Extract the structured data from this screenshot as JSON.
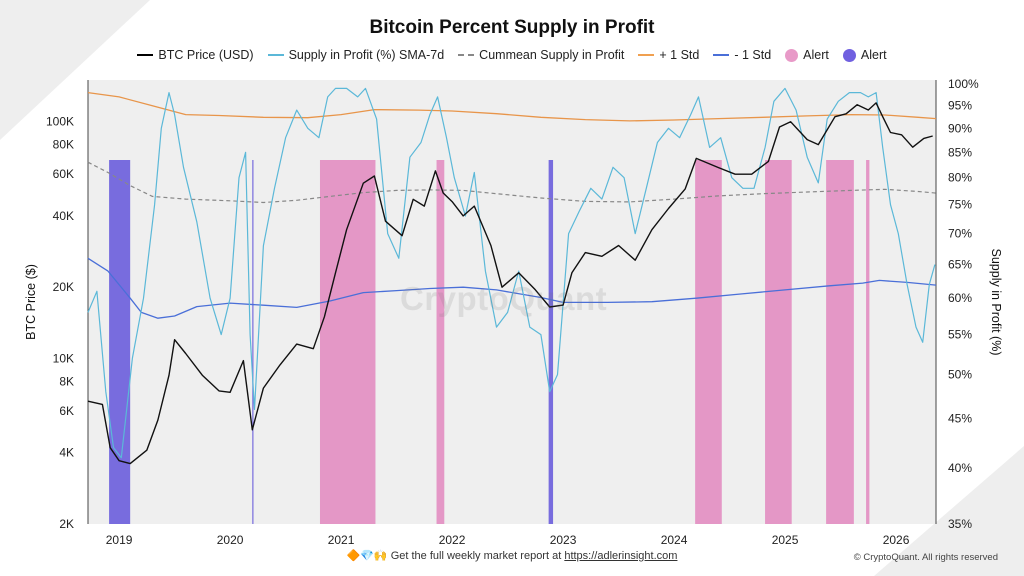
{
  "title": "Bitcoin Percent Supply in Profit",
  "legend": [
    {
      "label": "BTC Price (USD)",
      "kind": "line",
      "color": "#000000"
    },
    {
      "label": "Supply in Profit (%) SMA-7d",
      "kind": "line",
      "color": "#5bb8d8"
    },
    {
      "label": "Cummean Supply in Profit",
      "kind": "dash",
      "color": "#888888"
    },
    {
      "label": "+ 1 Std",
      "kind": "line",
      "color": "#f0a050"
    },
    {
      "label": "- 1 Std",
      "kind": "line",
      "color": "#4a6fd8"
    },
    {
      "label": "Alert",
      "kind": "dot",
      "color": "#e89ac8"
    },
    {
      "label": "Alert",
      "kind": "dot",
      "color": "#7060e0"
    }
  ],
  "watermark": "CryptoQuant",
  "footer": {
    "emoji": "🔶💎🙌",
    "text": "Get the full weekly market report at",
    "link": "https://adlerinsight.com"
  },
  "copyright": "© CryptoQuant. All rights reserved",
  "colors": {
    "price": "#111111",
    "supply": "#5bb8d8",
    "cummean": "#888888",
    "plus_std": "#e8954a",
    "minus_std": "#4a6fd8",
    "alert_pink": "#e07ab8",
    "alert_purple": "#5040d8",
    "plot_bg": "#efefef"
  },
  "chart_data": {
    "type": "line",
    "title": "Bitcoin Percent Supply in Profit",
    "x_axis": {
      "ticks": [
        "2019",
        "2020",
        "2021",
        "2022",
        "2023",
        "2024",
        "2025",
        "2026"
      ],
      "range": [
        2018.72,
        2026.36
      ]
    },
    "y_left": {
      "label": "BTC Price ($)",
      "scale": "log",
      "range": [
        2000,
        150000
      ],
      "ticks": [
        {
          "v": 2000,
          "label": "2K"
        },
        {
          "v": 4000,
          "label": "4K"
        },
        {
          "v": 6000,
          "label": "6K"
        },
        {
          "v": 8000,
          "label": "8K"
        },
        {
          "v": 10000,
          "label": "10K"
        },
        {
          "v": 20000,
          "label": "20K"
        },
        {
          "v": 40000,
          "label": "40K"
        },
        {
          "v": 60000,
          "label": "60K"
        },
        {
          "v": 80000,
          "label": "80K"
        },
        {
          "v": 100000,
          "label": "100K"
        }
      ]
    },
    "y_right": {
      "label": "Supply in Profit (%)",
      "scale": "log",
      "range": [
        35,
        101
      ],
      "ticks": [
        {
          "v": 35,
          "label": "35%"
        },
        {
          "v": 40,
          "label": "40%"
        },
        {
          "v": 45,
          "label": "45%"
        },
        {
          "v": 50,
          "label": "50%"
        },
        {
          "v": 55,
          "label": "55%"
        },
        {
          "v": 60,
          "label": "60%"
        },
        {
          "v": 65,
          "label": "65%"
        },
        {
          "v": 70,
          "label": "70%"
        },
        {
          "v": 75,
          "label": "75%"
        },
        {
          "v": 80,
          "label": "80%"
        },
        {
          "v": 85,
          "label": "85%"
        },
        {
          "v": 90,
          "label": "90%"
        },
        {
          "v": 95,
          "label": "95%"
        },
        {
          "v": 100,
          "label": "100%"
        }
      ]
    },
    "series": [
      {
        "name": "BTC Price (USD)",
        "axis": "left",
        "points": [
          [
            2018.72,
            6600
          ],
          [
            2018.85,
            6400
          ],
          [
            2018.92,
            4200
          ],
          [
            2019.0,
            3700
          ],
          [
            2019.1,
            3600
          ],
          [
            2019.25,
            4100
          ],
          [
            2019.35,
            5500
          ],
          [
            2019.45,
            8500
          ],
          [
            2019.5,
            12000
          ],
          [
            2019.6,
            10500
          ],
          [
            2019.75,
            8500
          ],
          [
            2019.9,
            7300
          ],
          [
            2020.0,
            7200
          ],
          [
            2020.12,
            9800
          ],
          [
            2020.2,
            5000
          ],
          [
            2020.3,
            7500
          ],
          [
            2020.45,
            9400
          ],
          [
            2020.6,
            11500
          ],
          [
            2020.75,
            11000
          ],
          [
            2020.85,
            15000
          ],
          [
            2020.95,
            23000
          ],
          [
            2021.05,
            35000
          ],
          [
            2021.2,
            55000
          ],
          [
            2021.3,
            59000
          ],
          [
            2021.4,
            38000
          ],
          [
            2021.55,
            33000
          ],
          [
            2021.65,
            47000
          ],
          [
            2021.75,
            44000
          ],
          [
            2021.85,
            62000
          ],
          [
            2021.92,
            50000
          ],
          [
            2022.0,
            46000
          ],
          [
            2022.1,
            40000
          ],
          [
            2022.2,
            44000
          ],
          [
            2022.35,
            30000
          ],
          [
            2022.45,
            20000
          ],
          [
            2022.6,
            23000
          ],
          [
            2022.75,
            19500
          ],
          [
            2022.88,
            16500
          ],
          [
            2023.0,
            16800
          ],
          [
            2023.08,
            23000
          ],
          [
            2023.2,
            28000
          ],
          [
            2023.35,
            27000
          ],
          [
            2023.5,
            30000
          ],
          [
            2023.65,
            26000
          ],
          [
            2023.8,
            35000
          ],
          [
            2023.95,
            43000
          ],
          [
            2024.1,
            52000
          ],
          [
            2024.2,
            70000
          ],
          [
            2024.4,
            64000
          ],
          [
            2024.55,
            60000
          ],
          [
            2024.7,
            60000
          ],
          [
            2024.85,
            68000
          ],
          [
            2024.95,
            95000
          ],
          [
            2025.05,
            100000
          ],
          [
            2025.2,
            84000
          ],
          [
            2025.3,
            80000
          ],
          [
            2025.45,
            105000
          ],
          [
            2025.55,
            108000
          ],
          [
            2025.65,
            118000
          ],
          [
            2025.75,
            112000
          ],
          [
            2025.82,
            120000
          ],
          [
            2025.88,
            105000
          ],
          [
            2025.95,
            90000
          ],
          [
            2026.05,
            88000
          ],
          [
            2026.15,
            78000
          ],
          [
            2026.25,
            85000
          ],
          [
            2026.33,
            87000
          ]
        ]
      },
      {
        "name": "Supply in Profit (%) SMA-7d",
        "axis": "right",
        "points": [
          [
            2018.72,
            58
          ],
          [
            2018.8,
            61
          ],
          [
            2018.88,
            48
          ],
          [
            2018.95,
            42
          ],
          [
            2019.02,
            41
          ],
          [
            2019.12,
            52
          ],
          [
            2019.22,
            60
          ],
          [
            2019.32,
            75
          ],
          [
            2019.38,
            90
          ],
          [
            2019.45,
            98
          ],
          [
            2019.5,
            93
          ],
          [
            2019.58,
            82
          ],
          [
            2019.7,
            72
          ],
          [
            2019.82,
            60
          ],
          [
            2019.92,
            55
          ],
          [
            2020.0,
            60
          ],
          [
            2020.08,
            80
          ],
          [
            2020.14,
            85
          ],
          [
            2020.18,
            55
          ],
          [
            2020.22,
            46
          ],
          [
            2020.3,
            68
          ],
          [
            2020.4,
            78
          ],
          [
            2020.5,
            88
          ],
          [
            2020.6,
            94
          ],
          [
            2020.7,
            90
          ],
          [
            2020.8,
            88
          ],
          [
            2020.88,
            97
          ],
          [
            2020.95,
            99
          ],
          [
            2021.05,
            99
          ],
          [
            2021.15,
            97
          ],
          [
            2021.22,
            99
          ],
          [
            2021.32,
            92
          ],
          [
            2021.42,
            70
          ],
          [
            2021.52,
            66
          ],
          [
            2021.62,
            84
          ],
          [
            2021.72,
            87
          ],
          [
            2021.8,
            93
          ],
          [
            2021.87,
            97
          ],
          [
            2021.95,
            88
          ],
          [
            2022.02,
            80
          ],
          [
            2022.12,
            73
          ],
          [
            2022.2,
            81
          ],
          [
            2022.3,
            64
          ],
          [
            2022.4,
            56
          ],
          [
            2022.5,
            58
          ],
          [
            2022.6,
            64
          ],
          [
            2022.7,
            56
          ],
          [
            2022.8,
            55
          ],
          [
            2022.88,
            48
          ],
          [
            2022.95,
            50
          ],
          [
            2023.05,
            70
          ],
          [
            2023.15,
            74
          ],
          [
            2023.25,
            78
          ],
          [
            2023.35,
            76
          ],
          [
            2023.45,
            82
          ],
          [
            2023.55,
            80
          ],
          [
            2023.65,
            70
          ],
          [
            2023.75,
            78
          ],
          [
            2023.85,
            87
          ],
          [
            2023.95,
            90
          ],
          [
            2024.05,
            88
          ],
          [
            2024.15,
            93
          ],
          [
            2024.22,
            97
          ],
          [
            2024.32,
            86
          ],
          [
            2024.42,
            88
          ],
          [
            2024.52,
            80
          ],
          [
            2024.62,
            78
          ],
          [
            2024.72,
            78
          ],
          [
            2024.82,
            86
          ],
          [
            2024.9,
            96
          ],
          [
            2025.0,
            99
          ],
          [
            2025.1,
            94
          ],
          [
            2025.2,
            84
          ],
          [
            2025.3,
            79
          ],
          [
            2025.38,
            92
          ],
          [
            2025.48,
            96
          ],
          [
            2025.58,
            98
          ],
          [
            2025.68,
            98
          ],
          [
            2025.75,
            97
          ],
          [
            2025.82,
            98
          ],
          [
            2025.88,
            86
          ],
          [
            2025.95,
            75
          ],
          [
            2026.02,
            70
          ],
          [
            2026.1,
            62
          ],
          [
            2026.18,
            56
          ],
          [
            2026.24,
            54
          ],
          [
            2026.3,
            62
          ],
          [
            2026.35,
            65
          ]
        ]
      },
      {
        "name": "Cummean Supply in Profit",
        "axis": "right",
        "points": [
          [
            2018.72,
            83
          ],
          [
            2018.9,
            81
          ],
          [
            2019.1,
            78.5
          ],
          [
            2019.3,
            76.5
          ],
          [
            2019.6,
            76
          ],
          [
            2020.0,
            75.7
          ],
          [
            2020.3,
            75.4
          ],
          [
            2020.6,
            75.8
          ],
          [
            2020.9,
            76.5
          ],
          [
            2021.2,
            77.2
          ],
          [
            2021.5,
            77.6
          ],
          [
            2021.8,
            77.7
          ],
          [
            2022.1,
            77.6
          ],
          [
            2022.4,
            77.0
          ],
          [
            2022.8,
            76.2
          ],
          [
            2023.2,
            75.6
          ],
          [
            2023.6,
            75.5
          ],
          [
            2024.0,
            76.0
          ],
          [
            2024.4,
            76.6
          ],
          [
            2024.8,
            77.0
          ],
          [
            2025.2,
            77.3
          ],
          [
            2025.6,
            77.6
          ],
          [
            2025.9,
            77.8
          ],
          [
            2026.2,
            77.4
          ],
          [
            2026.36,
            77.1
          ]
        ]
      },
      {
        "name": "+ 1 Std",
        "axis": "right",
        "points": [
          [
            2018.72,
            98
          ],
          [
            2019.0,
            97
          ],
          [
            2019.3,
            95
          ],
          [
            2019.6,
            93
          ],
          [
            2019.9,
            92.8
          ],
          [
            2020.3,
            92.4
          ],
          [
            2020.7,
            92.3
          ],
          [
            2021.0,
            93.0
          ],
          [
            2021.3,
            94.1
          ],
          [
            2021.7,
            94.0
          ],
          [
            2022.0,
            93.8
          ],
          [
            2022.4,
            93.2
          ],
          [
            2022.8,
            92.4
          ],
          [
            2023.2,
            91.9
          ],
          [
            2023.6,
            91.6
          ],
          [
            2024.0,
            91.8
          ],
          [
            2024.4,
            92.1
          ],
          [
            2024.8,
            92.4
          ],
          [
            2025.2,
            92.7
          ],
          [
            2025.6,
            93.0
          ],
          [
            2025.9,
            92.9
          ],
          [
            2026.2,
            92.4
          ],
          [
            2026.36,
            92.1
          ]
        ]
      },
      {
        "name": "- 1 Std",
        "axis": "right",
        "points": [
          [
            2018.72,
            66
          ],
          [
            2018.9,
            64
          ],
          [
            2019.1,
            60
          ],
          [
            2019.2,
            58
          ],
          [
            2019.35,
            57.2
          ],
          [
            2019.5,
            57.5
          ],
          [
            2019.7,
            58.8
          ],
          [
            2020.0,
            59.3
          ],
          [
            2020.3,
            59.0
          ],
          [
            2020.6,
            58.7
          ],
          [
            2020.9,
            59.6
          ],
          [
            2021.2,
            60.8
          ],
          [
            2021.5,
            61.1
          ],
          [
            2021.8,
            61.4
          ],
          [
            2022.1,
            61.6
          ],
          [
            2022.4,
            61.2
          ],
          [
            2022.8,
            60.1
          ],
          [
            2023.0,
            59.4
          ],
          [
            2023.4,
            59.4
          ],
          [
            2023.8,
            59.5
          ],
          [
            2024.2,
            60.0
          ],
          [
            2024.6,
            60.6
          ],
          [
            2025.0,
            61.2
          ],
          [
            2025.4,
            61.8
          ],
          [
            2025.7,
            62.2
          ],
          [
            2025.85,
            62.6
          ],
          [
            2026.1,
            62.3
          ],
          [
            2026.36,
            61.9
          ]
        ]
      }
    ],
    "alert_bands": [
      {
        "name": "Alert",
        "color": "#5040d8",
        "ranges": [
          [
            2018.91,
            2019.1
          ],
          [
            2020.2,
            2020.21
          ],
          [
            2022.87,
            2022.91
          ]
        ]
      },
      {
        "name": "Alert",
        "color": "#e07ab8",
        "ranges": [
          [
            2020.81,
            2021.31
          ],
          [
            2021.86,
            2021.93
          ],
          [
            2024.19,
            2024.43
          ],
          [
            2024.82,
            2025.06
          ],
          [
            2025.37,
            2025.62
          ],
          [
            2025.73,
            2025.76
          ]
        ]
      }
    ],
    "ylabel_left": "BTC Price ($)",
    "ylabel_right": "Supply in Profit (%)"
  }
}
